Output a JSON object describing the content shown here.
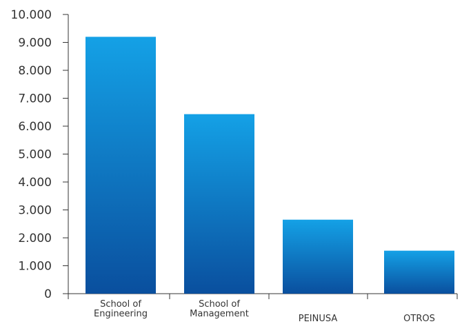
{
  "chart_data": {
    "type": "bar",
    "categories": [
      "School of Engineering",
      "School of Management",
      "PEINUSA",
      "OTROS"
    ],
    "category_label_lines": [
      [
        "School of",
        "Engineering"
      ],
      [
        "School of",
        "Management"
      ],
      [
        "PEINUSA"
      ],
      [
        "OTROS"
      ]
    ],
    "values": [
      9200,
      6430,
      2650,
      1540
    ],
    "ylim": [
      0,
      10000
    ],
    "yticks": [
      0,
      1000,
      2000,
      3000,
      4000,
      5000,
      6000,
      7000,
      8000,
      9000,
      10000
    ],
    "ytick_labels": [
      "0",
      "1.000",
      "2.000",
      "3.000",
      "4.000",
      "5.000",
      "6.000",
      "7.000",
      "8.000",
      "9.000",
      "10.000"
    ],
    "title": "",
    "xlabel": "",
    "ylabel": "",
    "grid": false,
    "legend": "none",
    "bar_color_top": "#14a1e6",
    "bar_color_bottom": "#0a4f9e",
    "axis_color": "#333333"
  }
}
